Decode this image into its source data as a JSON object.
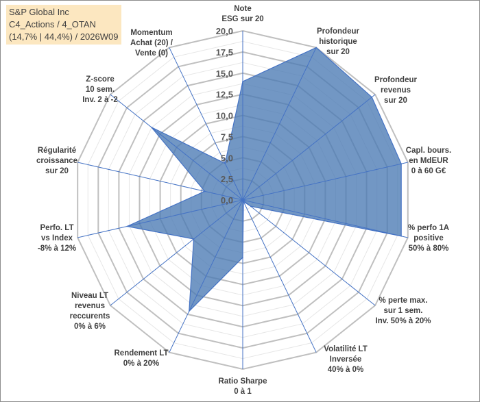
{
  "title_box": {
    "line1": "S&P Global Inc",
    "line2": "C4_Actions / 4_OTAN",
    "line3": "(14,7% | 44,4%) / 2026W09"
  },
  "colors": {
    "fill": "#4a7ab4",
    "spoke": "#4472c4",
    "grid": "#bfbfbf",
    "title_bg": "#fce7c0"
  },
  "chart_data": {
    "type": "radar",
    "title": "S&P Global Inc",
    "rlim": [
      0,
      20
    ],
    "tick_labels": [
      "0,0",
      "2,5",
      "5,0",
      "7,5",
      "10,0",
      "12,5",
      "15,0",
      "17,5",
      "20,0"
    ],
    "ticks": [
      0,
      2.5,
      5,
      7.5,
      10,
      12.5,
      15,
      17.5,
      20
    ],
    "axes": [
      {
        "lines": [
          "Note",
          "ESG sur 20"
        ],
        "value": 14.0
      },
      {
        "lines": [
          "Profondeur",
          "historique",
          "sur 20"
        ],
        "value": 20.0
      },
      {
        "lines": [
          "Profondeur",
          "revenus",
          "sur 20"
        ],
        "value": 19.5
      },
      {
        "lines": [
          "Capl. bours.",
          "en MdEUR",
          "0 à 60 G€"
        ],
        "value": 19.2
      },
      {
        "lines": [
          "% perfo 1A",
          "positive",
          "50% à 80%"
        ],
        "value": 19.2
      },
      {
        "lines": [
          "% perte max.",
          "sur 1 sem.",
          "Inv. 50% à 20%"
        ],
        "value": 1.2
      },
      {
        "lines": [
          "Volatilité LT",
          "Inversée",
          "40% à 0%"
        ],
        "value": 0.2
      },
      {
        "lines": [
          "Ratio Sharpe",
          "0 à 1"
        ],
        "value": 6.8
      },
      {
        "lines": [
          "Rendement LT",
          "0% à 20%"
        ],
        "value": 14.6
      },
      {
        "lines": [
          "Niveau LT",
          "revenus",
          "reccurents",
          "0% à 6%"
        ],
        "value": 7.4
      },
      {
        "lines": [
          "Perfo. LT",
          "vs Index",
          "-8% à 12%"
        ],
        "value": 14.0
      },
      {
        "lines": [
          "Régularité",
          "croissance",
          "sur 20"
        ],
        "value": 4.6
      },
      {
        "lines": [
          "Z-score",
          "10 sem.",
          "Inv. 2 à -2"
        ],
        "value": 13.8
      },
      {
        "lines": [
          "Momentum",
          "Achat (20) /",
          "Vente (0)"
        ],
        "value": 4.8
      }
    ]
  }
}
